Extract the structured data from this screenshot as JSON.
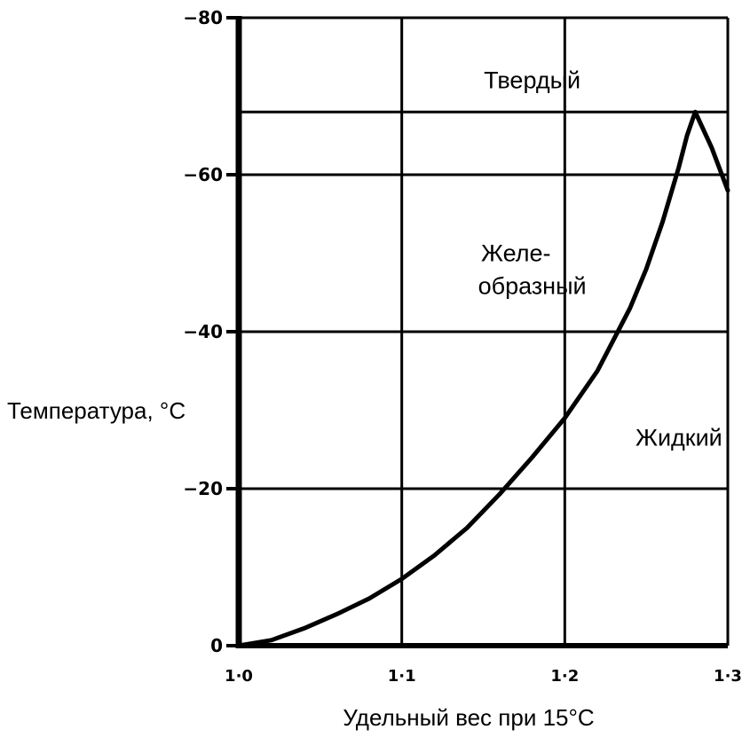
{
  "chart_data": {
    "type": "line",
    "title": "",
    "xlabel": "Удельный вес при 15°С",
    "ylabel": "Температура, °С",
    "xlim": [
      1.0,
      1.3
    ],
    "ylim": [
      0,
      -80
    ],
    "x_ticks": [
      1.0,
      1.1,
      1.2,
      1.3
    ],
    "x_tick_labels": [
      "1·0",
      "1·1",
      "1·2",
      "1·3"
    ],
    "y_ticks": [
      0,
      -20,
      -40,
      -60,
      -80
    ],
    "y_tick_labels": [
      "0",
      "−20",
      "−40",
      "−60",
      "−80"
    ],
    "grid": true,
    "reference_line_y": -68,
    "series": [
      {
        "x": [
          1.0,
          1.02,
          1.04,
          1.06,
          1.08,
          1.1,
          1.12,
          1.14,
          1.16,
          1.18,
          1.2,
          1.22,
          1.24,
          1.25,
          1.26,
          1.27,
          1.275,
          1.28,
          1.29,
          1.3
        ],
        "y": [
          0,
          -0.7,
          -2.2,
          -4,
          -6,
          -8.5,
          -11.5,
          -15,
          -19.3,
          -24,
          -29,
          -35,
          -43,
          -48,
          -54,
          -61,
          -65,
          -68,
          -63.5,
          -58
        ]
      }
    ],
    "annotations": [
      {
        "text": "Твердый",
        "x": 1.18,
        "y": -71
      },
      {
        "text": "Желе-",
        "x": 1.17,
        "y": -49
      },
      {
        "text": "образный",
        "x": 1.18,
        "y": -44.8
      },
      {
        "text": "Жидкий",
        "x": 1.27,
        "y": -25.5
      }
    ]
  }
}
